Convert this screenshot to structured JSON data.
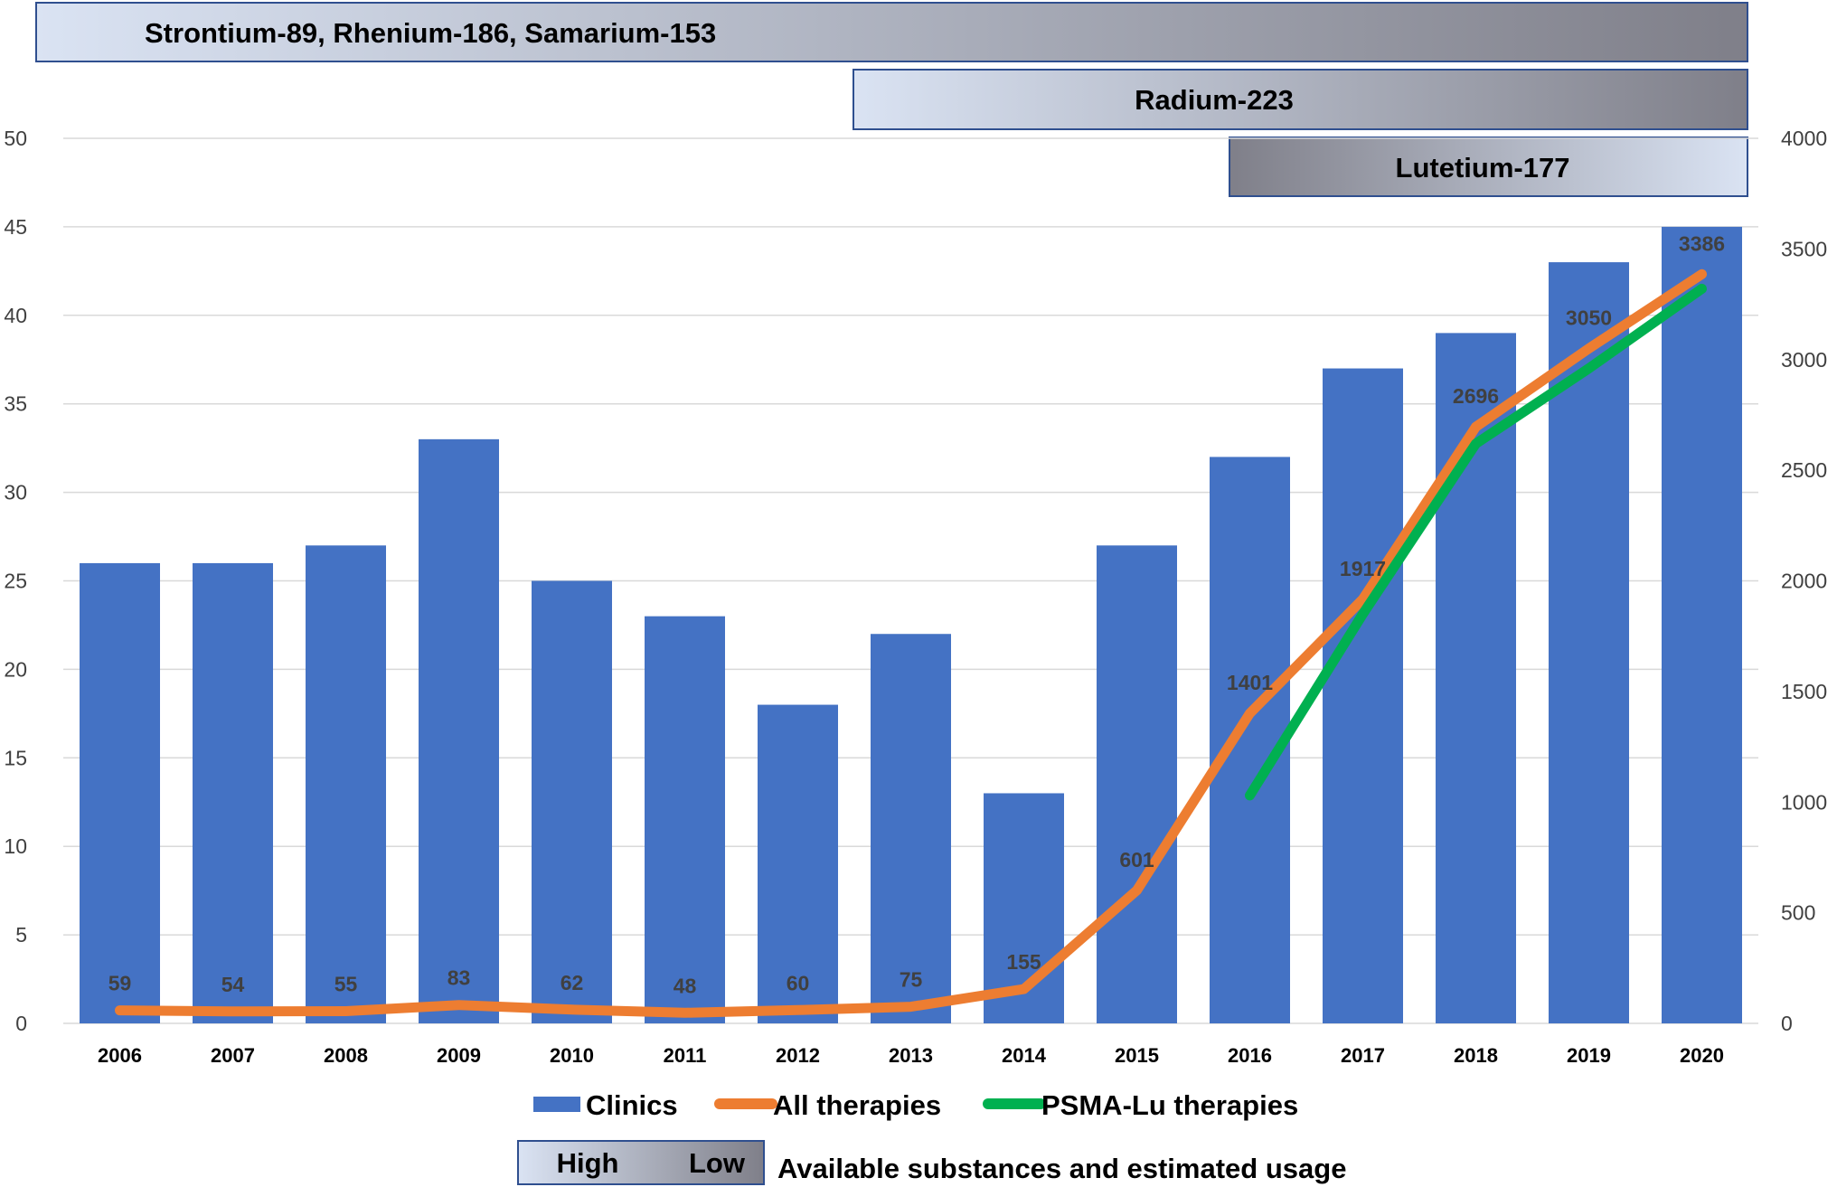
{
  "chart_data": {
    "type": "bar",
    "categories": [
      "2006",
      "2007",
      "2008",
      "2009",
      "2010",
      "2011",
      "2012",
      "2013",
      "2014",
      "2015",
      "2016",
      "2017",
      "2018",
      "2019",
      "2020"
    ],
    "series": [
      {
        "name": "Clinics",
        "kind": "bar",
        "axis": "left",
        "color": "#4472C4",
        "values": [
          26,
          26,
          27,
          33,
          25,
          23,
          18,
          22,
          13,
          27,
          32,
          37,
          39,
          43,
          45
        ]
      },
      {
        "name": "All therapies",
        "kind": "line",
        "axis": "right",
        "color": "#ED7D31",
        "values": [
          59,
          54,
          55,
          83,
          62,
          48,
          60,
          75,
          155,
          601,
          1401,
          1917,
          2696,
          3050,
          3386
        ],
        "data_labels": [
          "59",
          "54",
          "55",
          "83",
          "62",
          "48",
          "60",
          "75",
          "155",
          "601",
          "1401",
          "1917",
          "2696",
          "3050",
          "3386"
        ]
      },
      {
        "name": "PSMA-Lu therapies",
        "kind": "line",
        "axis": "right",
        "color": "#00B050",
        "values": [
          null,
          null,
          null,
          null,
          null,
          null,
          null,
          null,
          null,
          null,
          1030,
          1850,
          2620,
          2960,
          3320
        ]
      }
    ],
    "left_axis": {
      "ylim": [
        0,
        50
      ],
      "ticks": [
        "0",
        "5",
        "10",
        "15",
        "20",
        "25",
        "30",
        "35",
        "40",
        "45",
        "50"
      ]
    },
    "right_axis": {
      "ylim": [
        0,
        4000
      ],
      "ticks": [
        "0",
        "500",
        "1000",
        "1500",
        "2000",
        "2500",
        "3000",
        "3500",
        "4000"
      ]
    },
    "grid": true,
    "legend_placement": "bottom",
    "legend": [
      "Clinics",
      "All therapies",
      "PSMA-Lu therapies"
    ]
  },
  "availability_bands": [
    {
      "label": "Strontium-89, Rhenium-186, Samarium-153",
      "start_year": "2006",
      "end_year": "2020",
      "gradient": "high-to-low"
    },
    {
      "label": "Radium-223",
      "start_year": "2013",
      "end_year": "2020",
      "gradient": "high-to-low"
    },
    {
      "label": "Lutetium-177",
      "start_year": "2016",
      "end_year": "2020",
      "gradient": "low-to-high"
    }
  ],
  "usage_legend": {
    "high_label": "High",
    "low_label": "Low",
    "caption": "Available substances and estimated usage"
  },
  "colors": {
    "band_light": "#DAE3F3",
    "band_dark": "#7F7F89",
    "grid": "#D9D9D9",
    "axis_text": "#404040"
  }
}
